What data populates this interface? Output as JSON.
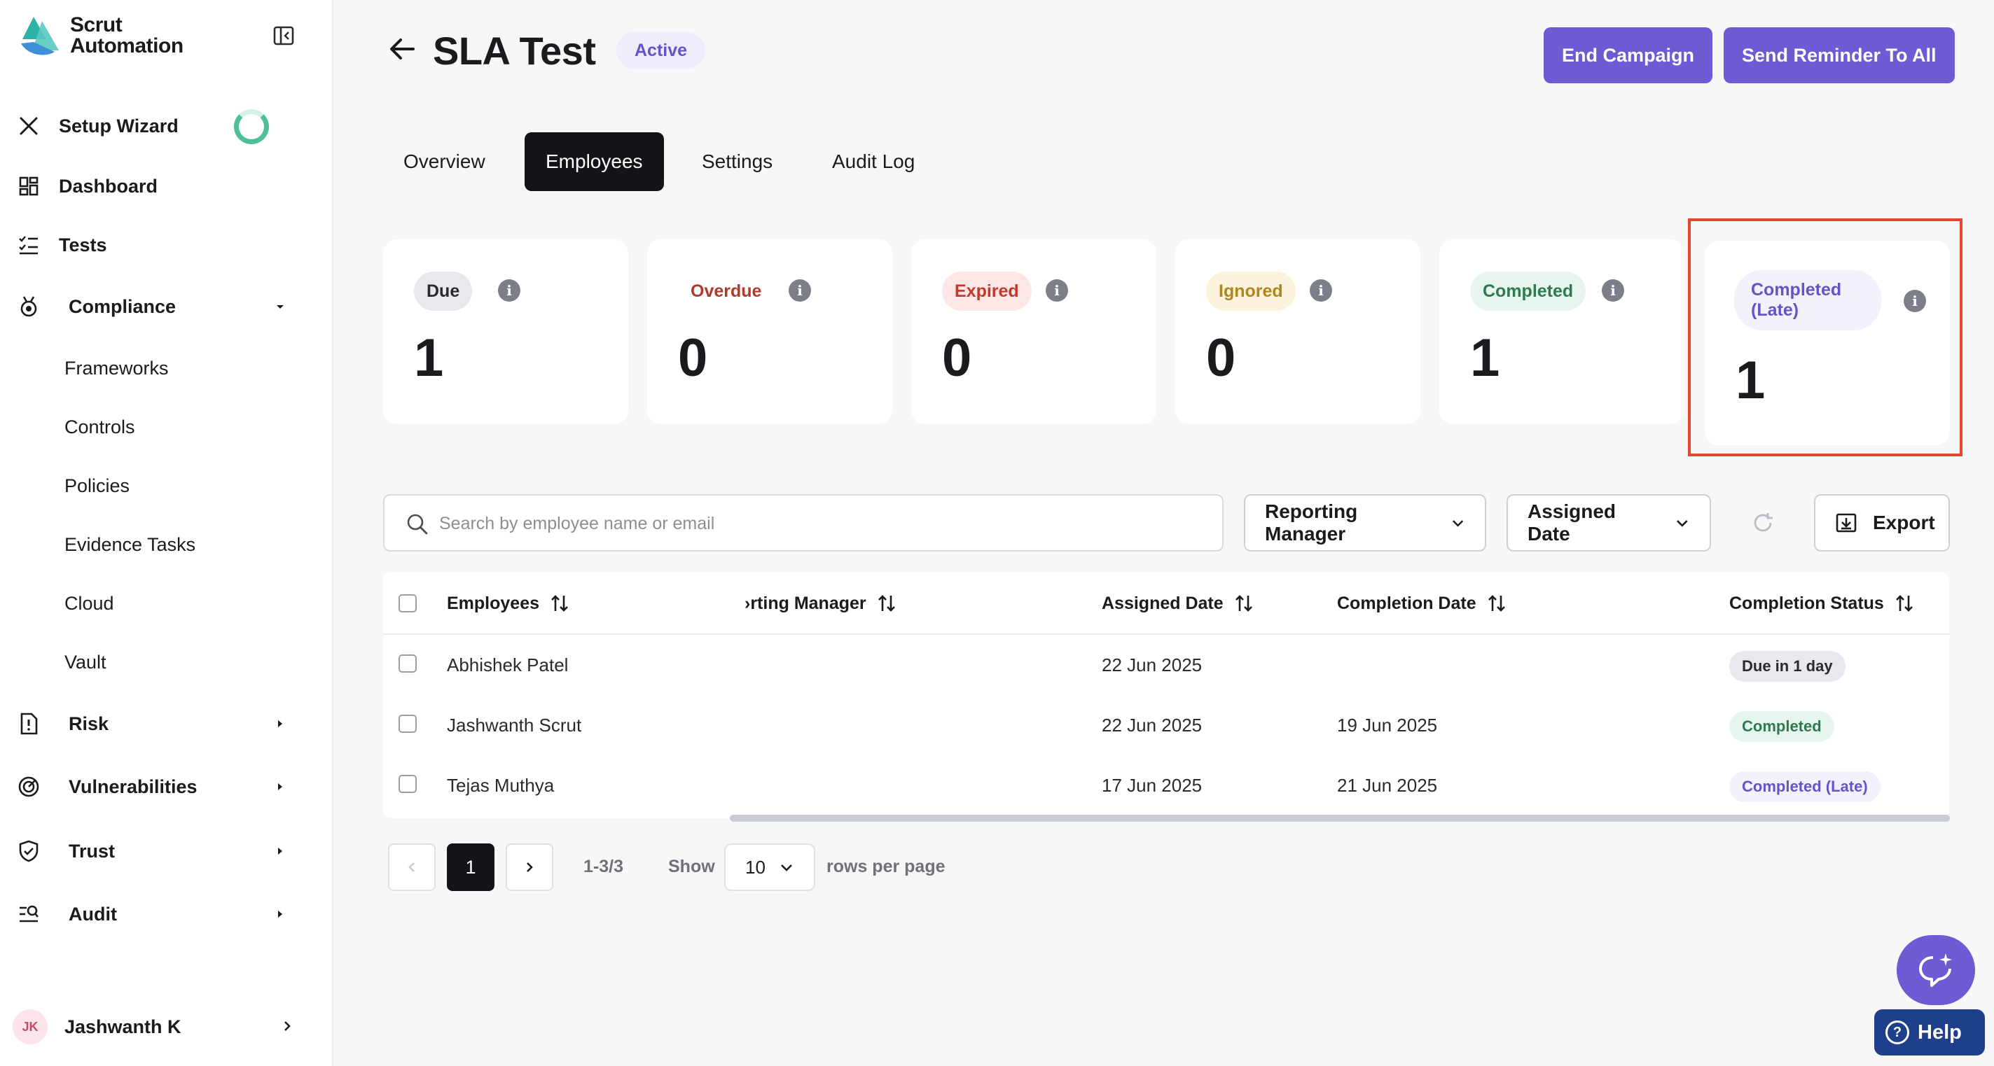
{
  "sidebar": {
    "brand_line1": "Scrut",
    "brand_line2": "Automation",
    "items": {
      "setup_wizard": "Setup Wizard",
      "dashboard": "Dashboard",
      "tests": "Tests",
      "compliance": "Compliance",
      "frameworks": "Frameworks",
      "controls": "Controls",
      "policies": "Policies",
      "evidence_tasks": "Evidence Tasks",
      "cloud": "Cloud",
      "vault": "Vault",
      "risk": "Risk",
      "vulnerabilities": "Vulnerabilities",
      "trust": "Trust",
      "audit": "Audit"
    },
    "user": {
      "initials": "JK",
      "name": "Jashwanth K"
    }
  },
  "header": {
    "title": "SLA Test",
    "status": "Active",
    "end_campaign": "End Campaign",
    "send_reminder": "Send Reminder To All"
  },
  "tabs": [
    "Overview",
    "Employees",
    "Settings",
    "Audit Log"
  ],
  "active_tab": "Employees",
  "stats": [
    {
      "label": "Due",
      "count": "1",
      "bg": "#e8e9ee",
      "fg": "#2a2a30"
    },
    {
      "label": "Overdue",
      "count": "0",
      "bg": "#ffffff",
      "fg": "#b23a2a"
    },
    {
      "label": "Expired",
      "count": "0",
      "bg": "#fde6e6",
      "fg": "#c0392b"
    },
    {
      "label": "Ignored",
      "count": "0",
      "bg": "#fdf3dc",
      "fg": "#b0851c"
    },
    {
      "label": "Completed",
      "count": "1",
      "bg": "#e6f6ee",
      "fg": "#2f7a50"
    },
    {
      "label": "Completed (Late)",
      "count": "1",
      "bg": "#f3f1fb",
      "fg": "#6753c8"
    }
  ],
  "filters": {
    "search_placeholder": "Search by employee name or email",
    "reporting_manager": "Reporting Manager",
    "assigned_date": "Assigned Date",
    "export": "Export"
  },
  "table": {
    "columns": {
      "employees": "Employees",
      "reporting_manager": "›rting Manager",
      "assigned_date": "Assigned Date",
      "completion_date": "Completion Date",
      "completion_status": "Completion Status"
    },
    "rows": [
      {
        "name": "Abhishek Patel",
        "assigned": "22 Jun 2025",
        "completed": "",
        "status": "Due in 1 day"
      },
      {
        "name": "Jashwanth Scrut",
        "assigned": "22 Jun 2025",
        "completed": "19 Jun 2025",
        "status": "Completed"
      },
      {
        "name": "Tejas Muthya",
        "assigned": "17 Jun 2025",
        "completed": "21 Jun 2025",
        "status": "Completed (Late)"
      }
    ]
  },
  "pagination": {
    "current_page": "1",
    "range": "1-3/3",
    "show": "Show",
    "rows_value": "10",
    "rows_per_page": "rows per page"
  },
  "help": {
    "label": "Help"
  },
  "colors": {
    "accent": "#6c5bd2",
    "highlight": "#e5462e",
    "help": "#1e3f8a"
  }
}
